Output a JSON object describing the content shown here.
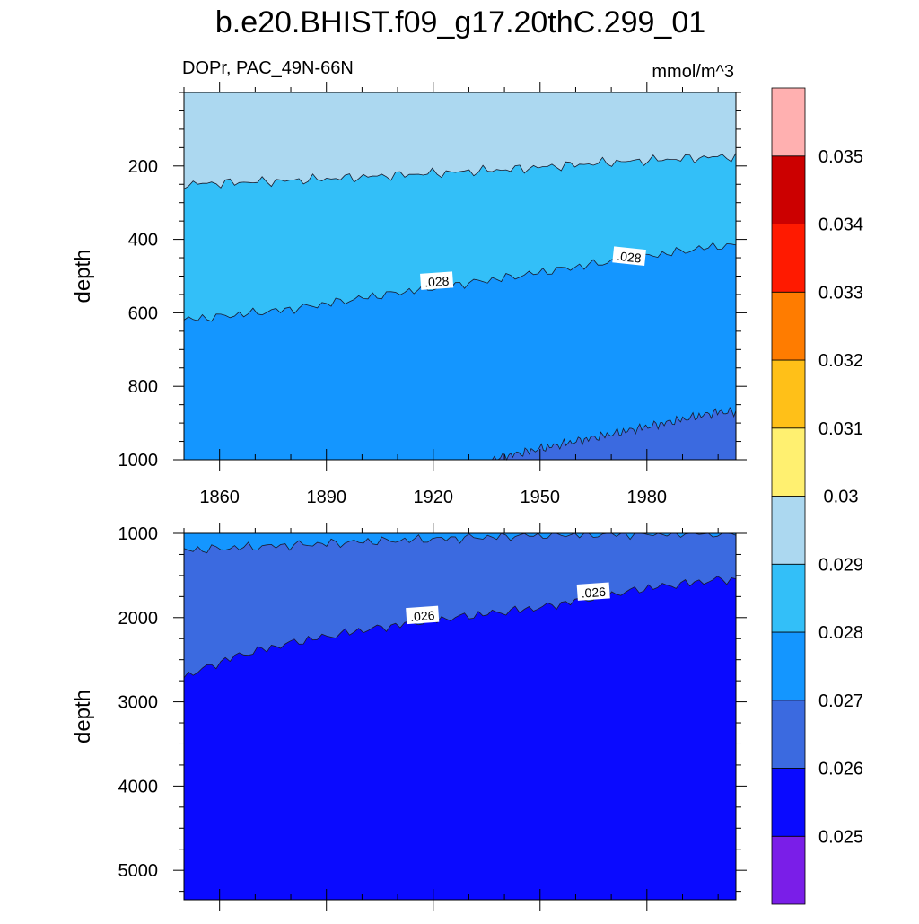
{
  "title": "b.e20.BHIST.f09_g17.20thC.299_01",
  "chart_data": {
    "type": "contour",
    "title": "b.e20.BHIST.f09_g17.20thC.299_01",
    "left_label": "DOPr, PAC_49N-66N",
    "units": "mmol/m^3",
    "xlim": [
      1850,
      2005
    ],
    "x_ticks": [
      1860,
      1890,
      1920,
      1950,
      1980
    ],
    "colorbar": {
      "levels": [
        0.025,
        0.026,
        0.027,
        0.028,
        0.029,
        0.03,
        0.031,
        0.032,
        0.033,
        0.034,
        0.035
      ],
      "level_labels": [
        "0.025",
        "0.026",
        "0.027",
        "0.028",
        "0.029",
        "0.03",
        "0.031",
        "0.032",
        "0.033",
        "0.034",
        "0.035"
      ],
      "colors": [
        "#7a1ee8",
        "#0a0aff",
        "#3b6ae0",
        "#1496ff",
        "#33bff8",
        "#acd8f0",
        "#fff070",
        "#ffc018",
        "#ff7c00",
        "#ff1a00",
        "#cc0000",
        "#ffb0b0"
      ]
    },
    "panels": [
      {
        "ylabel": "depth",
        "ylim": [
          0,
          1000
        ],
        "y_ticks": [
          200,
          400,
          600,
          800,
          1000
        ],
        "background_color": "#acd8f0",
        "contours": [
          {
            "level": 0.029,
            "fill_below": "#33bff8",
            "x": [
              1850,
              1880,
              1910,
              1940,
              1970,
              2000
            ],
            "depth": [
              250,
              240,
              225,
              210,
              190,
              175
            ]
          },
          {
            "level": 0.028,
            "fill_below": "#1496ff",
            "x": [
              1850,
              1880,
              1910,
              1940,
              1970,
              2000
            ],
            "depth": [
              620,
              590,
              545,
              505,
              460,
              418
            ]
          },
          {
            "level": 0.027,
            "fill_below": "#3b6ae0",
            "x": [
              1936,
              1950,
              1970,
              2000
            ],
            "depth": [
              1000,
              970,
              930,
              870
            ]
          }
        ],
        "contour_labels": [
          {
            "text": ".028",
            "x": 1921,
            "depth": 515
          },
          {
            "text": ".028",
            "x": 1975,
            "depth": 448
          }
        ]
      },
      {
        "ylabel": "depth",
        "ylim": [
          1000,
          5350
        ],
        "y_ticks": [
          1000,
          2000,
          3000,
          4000,
          5000
        ],
        "background_color": "#3b6ae0",
        "contours": [
          {
            "level": 0.027,
            "fill_above": "#1496ff",
            "x": [
              1850,
              1900,
              1950,
              1990
            ],
            "depth": [
              1200,
              1100,
              1020,
              1000
            ]
          },
          {
            "level": 0.026,
            "fill_below": "#0a0aff",
            "x": [
              1850,
              1865,
              1880,
              1900,
              1920,
              1950,
              1980,
              2000
            ],
            "depth": [
              2700,
              2450,
              2300,
              2150,
              2030,
              1880,
              1650,
              1550
            ]
          }
        ],
        "contour_labels": [
          {
            "text": ".026",
            "x": 1917,
            "depth": 1980
          },
          {
            "text": ".026",
            "x": 1965,
            "depth": 1700
          }
        ]
      }
    ]
  }
}
